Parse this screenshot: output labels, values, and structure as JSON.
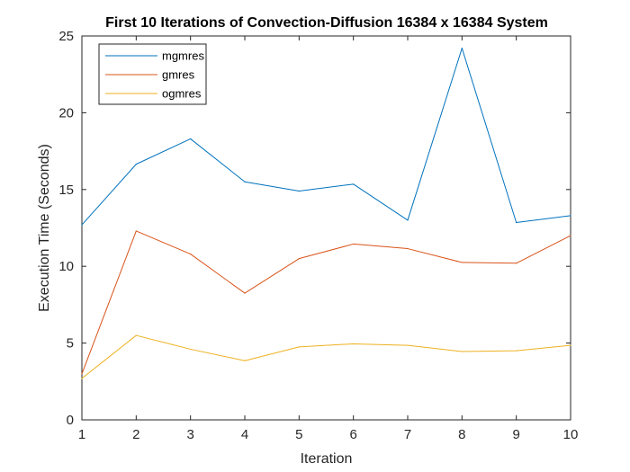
{
  "chart_data": {
    "type": "line",
    "title": "First 10 Iterations of Convection-Diffusion 16384 x 16384 System",
    "xlabel": "Iteration",
    "ylabel": "Execution Time (Seconds)",
    "x": [
      1,
      2,
      3,
      4,
      5,
      6,
      7,
      8,
      9,
      10
    ],
    "xlim": [
      1,
      10
    ],
    "ylim": [
      0,
      25
    ],
    "xticks": [
      "1",
      "2",
      "3",
      "4",
      "5",
      "6",
      "7",
      "8",
      "9",
      "10"
    ],
    "yticks": [
      "0",
      "5",
      "10",
      "15",
      "20",
      "25"
    ],
    "grid": false,
    "legend_position": "top-left",
    "series": [
      {
        "name": "mgmres",
        "color": "#0072BD",
        "values": [
          12.7,
          16.65,
          18.3,
          15.5,
          14.9,
          15.35,
          13.0,
          24.2,
          12.85,
          13.3
        ]
      },
      {
        "name": "gmres",
        "color": "#D95319",
        "values": [
          3.0,
          12.3,
          10.8,
          8.25,
          10.5,
          11.45,
          11.15,
          10.25,
          10.2,
          12.0
        ]
      },
      {
        "name": "ogmres",
        "color": "#EDB120",
        "values": [
          2.7,
          5.5,
          4.6,
          3.85,
          4.75,
          4.95,
          4.85,
          4.45,
          4.5,
          4.85
        ]
      }
    ]
  }
}
